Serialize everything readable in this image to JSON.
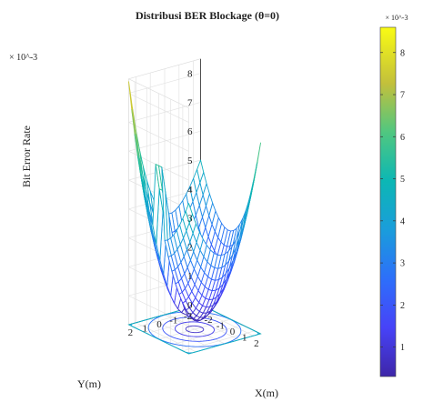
{
  "chart_data": {
    "type": "surface-3d",
    "title": "Distribusi BER Blockage (θ=0)",
    "xlabel": "X(m)",
    "ylabel": "Y(m)",
    "zlabel": "Bit Error Rate",
    "z_exponent_label": "× 10^-3",
    "x_ticks": [
      "-2",
      "-1",
      "0",
      "1",
      "2"
    ],
    "y_ticks": [
      "-2",
      "-1",
      "0",
      "1",
      "2"
    ],
    "z_ticks": [
      "0",
      "1",
      "2",
      "3",
      "4",
      "5",
      "6",
      "7",
      "8"
    ],
    "xlim": [
      -2.5,
      2.5
    ],
    "ylim": [
      -2.5,
      2.5
    ],
    "zlim": [
      0,
      8.5
    ],
    "colorbar": {
      "exponent_label": "× 10^-3",
      "ticks": [
        "1",
        "2",
        "3",
        "4",
        "5",
        "6",
        "7",
        "8"
      ],
      "range": [
        0.3,
        8.6
      ],
      "colormap": "parula"
    },
    "surface": {
      "description_values": "BER (×10^-3) over X,Y grid",
      "grid": [
        -2.5,
        -2.25,
        -2.0,
        -1.75,
        -1.5,
        -1.25,
        -1.0,
        -0.75,
        -0.5,
        -0.25,
        0.0,
        0.25,
        0.5,
        0.75,
        1.0,
        1.25,
        1.5,
        1.75,
        2.0,
        2.25,
        2.5
      ],
      "center_min": 0.3,
      "corner_values": {
        "x-2.5_y2.5": 8.4,
        "x2.5_y-2.5": 6.6,
        "x2.5_y2.5": 5.2,
        "x-2.5_y-2.5": 5.0
      },
      "blockage_ridge": {
        "axis": "y",
        "from_center_toward": "y=2.5",
        "peak_value": 6.0
      },
      "grid_on": true
    }
  }
}
